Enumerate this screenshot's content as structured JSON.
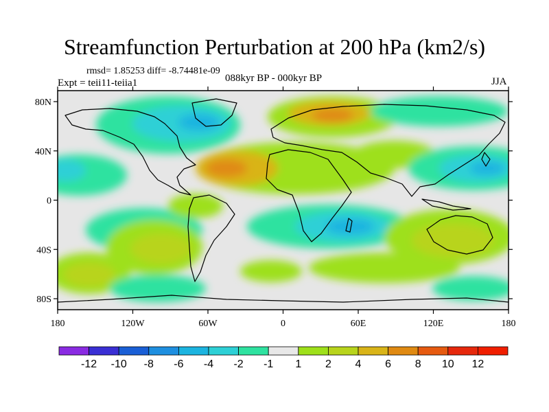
{
  "title": "Streamfunction Perturbation at 200 hPa (km2/s)",
  "stats": "rmsd= 1.85253  diff= -8.74481e-09",
  "experiment": "Expt = teii11-teiia1",
  "period": "088kyr BP - 000kyr BP",
  "season": "JJA",
  "axes": {
    "lat_ticks": [
      "80N",
      "40N",
      "0",
      "40S",
      "80S"
    ],
    "lon_ticks": [
      "180",
      "120W",
      "60W",
      "0",
      "60E",
      "120E",
      "180"
    ]
  },
  "colorbar": {
    "labels": [
      "-12",
      "-10",
      "-8",
      "-6",
      "-4",
      "-2",
      "-1",
      "1",
      "2",
      "4",
      "6",
      "8",
      "10",
      "12"
    ],
    "colors": [
      "#8a2be2",
      "#3a2fd4",
      "#1a5fd6",
      "#1e8fe0",
      "#1cb4e0",
      "#2dd0d6",
      "#2ee2a0",
      "#e8e8e8",
      "#9ee01a",
      "#b8d41c",
      "#d9b418",
      "#e08a12",
      "#e65a10",
      "#e6280c",
      "#f01e00"
    ]
  }
}
